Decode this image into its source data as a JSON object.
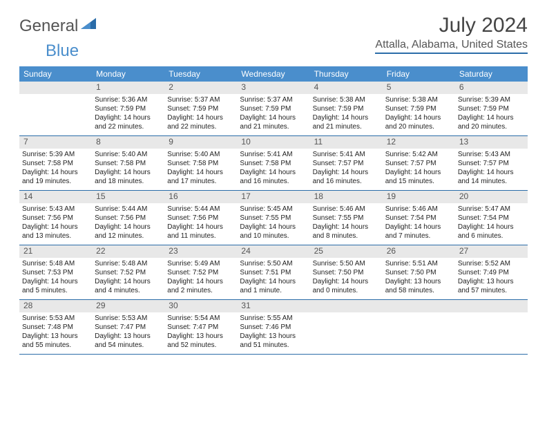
{
  "logo": {
    "general": "General",
    "blue": "Blue"
  },
  "title": "July 2024",
  "location": "Attalla, Alabama, United States",
  "day_names": [
    "Sunday",
    "Monday",
    "Tuesday",
    "Wednesday",
    "Thursday",
    "Friday",
    "Saturday"
  ],
  "colors": {
    "header_bg": "#4a8ecc",
    "rule": "#2a6ca8",
    "numrow_bg": "#e8e8e8"
  },
  "weeks": [
    [
      {
        "n": "",
        "sr": "",
        "ss": "",
        "dl": ""
      },
      {
        "n": "1",
        "sr": "Sunrise: 5:36 AM",
        "ss": "Sunset: 7:59 PM",
        "dl": "Daylight: 14 hours and 22 minutes."
      },
      {
        "n": "2",
        "sr": "Sunrise: 5:37 AM",
        "ss": "Sunset: 7:59 PM",
        "dl": "Daylight: 14 hours and 22 minutes."
      },
      {
        "n": "3",
        "sr": "Sunrise: 5:37 AM",
        "ss": "Sunset: 7:59 PM",
        "dl": "Daylight: 14 hours and 21 minutes."
      },
      {
        "n": "4",
        "sr": "Sunrise: 5:38 AM",
        "ss": "Sunset: 7:59 PM",
        "dl": "Daylight: 14 hours and 21 minutes."
      },
      {
        "n": "5",
        "sr": "Sunrise: 5:38 AM",
        "ss": "Sunset: 7:59 PM",
        "dl": "Daylight: 14 hours and 20 minutes."
      },
      {
        "n": "6",
        "sr": "Sunrise: 5:39 AM",
        "ss": "Sunset: 7:59 PM",
        "dl": "Daylight: 14 hours and 20 minutes."
      }
    ],
    [
      {
        "n": "7",
        "sr": "Sunrise: 5:39 AM",
        "ss": "Sunset: 7:58 PM",
        "dl": "Daylight: 14 hours and 19 minutes."
      },
      {
        "n": "8",
        "sr": "Sunrise: 5:40 AM",
        "ss": "Sunset: 7:58 PM",
        "dl": "Daylight: 14 hours and 18 minutes."
      },
      {
        "n": "9",
        "sr": "Sunrise: 5:40 AM",
        "ss": "Sunset: 7:58 PM",
        "dl": "Daylight: 14 hours and 17 minutes."
      },
      {
        "n": "10",
        "sr": "Sunrise: 5:41 AM",
        "ss": "Sunset: 7:58 PM",
        "dl": "Daylight: 14 hours and 16 minutes."
      },
      {
        "n": "11",
        "sr": "Sunrise: 5:41 AM",
        "ss": "Sunset: 7:57 PM",
        "dl": "Daylight: 14 hours and 16 minutes."
      },
      {
        "n": "12",
        "sr": "Sunrise: 5:42 AM",
        "ss": "Sunset: 7:57 PM",
        "dl": "Daylight: 14 hours and 15 minutes."
      },
      {
        "n": "13",
        "sr": "Sunrise: 5:43 AM",
        "ss": "Sunset: 7:57 PM",
        "dl": "Daylight: 14 hours and 14 minutes."
      }
    ],
    [
      {
        "n": "14",
        "sr": "Sunrise: 5:43 AM",
        "ss": "Sunset: 7:56 PM",
        "dl": "Daylight: 14 hours and 13 minutes."
      },
      {
        "n": "15",
        "sr": "Sunrise: 5:44 AM",
        "ss": "Sunset: 7:56 PM",
        "dl": "Daylight: 14 hours and 12 minutes."
      },
      {
        "n": "16",
        "sr": "Sunrise: 5:44 AM",
        "ss": "Sunset: 7:56 PM",
        "dl": "Daylight: 14 hours and 11 minutes."
      },
      {
        "n": "17",
        "sr": "Sunrise: 5:45 AM",
        "ss": "Sunset: 7:55 PM",
        "dl": "Daylight: 14 hours and 10 minutes."
      },
      {
        "n": "18",
        "sr": "Sunrise: 5:46 AM",
        "ss": "Sunset: 7:55 PM",
        "dl": "Daylight: 14 hours and 8 minutes."
      },
      {
        "n": "19",
        "sr": "Sunrise: 5:46 AM",
        "ss": "Sunset: 7:54 PM",
        "dl": "Daylight: 14 hours and 7 minutes."
      },
      {
        "n": "20",
        "sr": "Sunrise: 5:47 AM",
        "ss": "Sunset: 7:54 PM",
        "dl": "Daylight: 14 hours and 6 minutes."
      }
    ],
    [
      {
        "n": "21",
        "sr": "Sunrise: 5:48 AM",
        "ss": "Sunset: 7:53 PM",
        "dl": "Daylight: 14 hours and 5 minutes."
      },
      {
        "n": "22",
        "sr": "Sunrise: 5:48 AM",
        "ss": "Sunset: 7:52 PM",
        "dl": "Daylight: 14 hours and 4 minutes."
      },
      {
        "n": "23",
        "sr": "Sunrise: 5:49 AM",
        "ss": "Sunset: 7:52 PM",
        "dl": "Daylight: 14 hours and 2 minutes."
      },
      {
        "n": "24",
        "sr": "Sunrise: 5:50 AM",
        "ss": "Sunset: 7:51 PM",
        "dl": "Daylight: 14 hours and 1 minute."
      },
      {
        "n": "25",
        "sr": "Sunrise: 5:50 AM",
        "ss": "Sunset: 7:50 PM",
        "dl": "Daylight: 14 hours and 0 minutes."
      },
      {
        "n": "26",
        "sr": "Sunrise: 5:51 AM",
        "ss": "Sunset: 7:50 PM",
        "dl": "Daylight: 13 hours and 58 minutes."
      },
      {
        "n": "27",
        "sr": "Sunrise: 5:52 AM",
        "ss": "Sunset: 7:49 PM",
        "dl": "Daylight: 13 hours and 57 minutes."
      }
    ],
    [
      {
        "n": "28",
        "sr": "Sunrise: 5:53 AM",
        "ss": "Sunset: 7:48 PM",
        "dl": "Daylight: 13 hours and 55 minutes."
      },
      {
        "n": "29",
        "sr": "Sunrise: 5:53 AM",
        "ss": "Sunset: 7:47 PM",
        "dl": "Daylight: 13 hours and 54 minutes."
      },
      {
        "n": "30",
        "sr": "Sunrise: 5:54 AM",
        "ss": "Sunset: 7:47 PM",
        "dl": "Daylight: 13 hours and 52 minutes."
      },
      {
        "n": "31",
        "sr": "Sunrise: 5:55 AM",
        "ss": "Sunset: 7:46 PM",
        "dl": "Daylight: 13 hours and 51 minutes."
      },
      {
        "n": "",
        "sr": "",
        "ss": "",
        "dl": ""
      },
      {
        "n": "",
        "sr": "",
        "ss": "",
        "dl": ""
      },
      {
        "n": "",
        "sr": "",
        "ss": "",
        "dl": ""
      }
    ]
  ]
}
